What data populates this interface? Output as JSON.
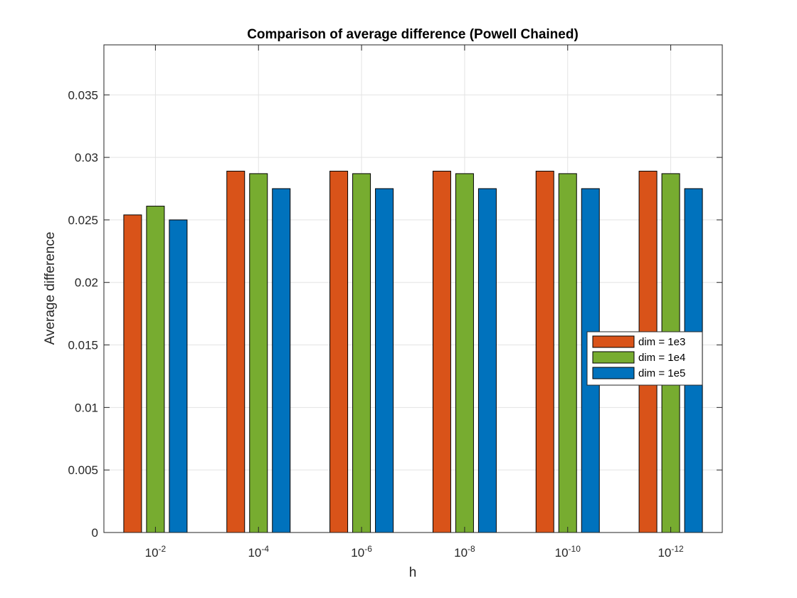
{
  "chart_data": {
    "type": "bar",
    "title": "Comparison of average difference (Powell Chained)",
    "xlabel": "h",
    "ylabel": "Average difference",
    "categories": [
      {
        "base": "10",
        "exp": "-2"
      },
      {
        "base": "10",
        "exp": "-4"
      },
      {
        "base": "10",
        "exp": "-6"
      },
      {
        "base": "10",
        "exp": "-8"
      },
      {
        "base": "10",
        "exp": "-10"
      },
      {
        "base": "10",
        "exp": "-12"
      }
    ],
    "series": [
      {
        "name": "dim = 1e3",
        "color": "#D95319",
        "values": [
          0.0254,
          0.0289,
          0.0289,
          0.0289,
          0.0289,
          0.0289
        ]
      },
      {
        "name": "dim = 1e4",
        "color": "#77AC30",
        "values": [
          0.0261,
          0.0287,
          0.0287,
          0.0287,
          0.0287,
          0.0287
        ]
      },
      {
        "name": "dim = 1e5",
        "color": "#0072BD",
        "values": [
          0.025,
          0.0275,
          0.0275,
          0.0275,
          0.0275,
          0.0275
        ]
      }
    ],
    "ylim": [
      0,
      0.039
    ],
    "yticks": [
      "0",
      "0.005",
      "0.01",
      "0.015",
      "0.02",
      "0.025",
      "0.03",
      "0.035"
    ],
    "ytick_values": [
      0,
      0.005,
      0.01,
      0.015,
      0.02,
      0.025,
      0.03,
      0.035
    ],
    "grid": true,
    "legend_position": "right"
  }
}
